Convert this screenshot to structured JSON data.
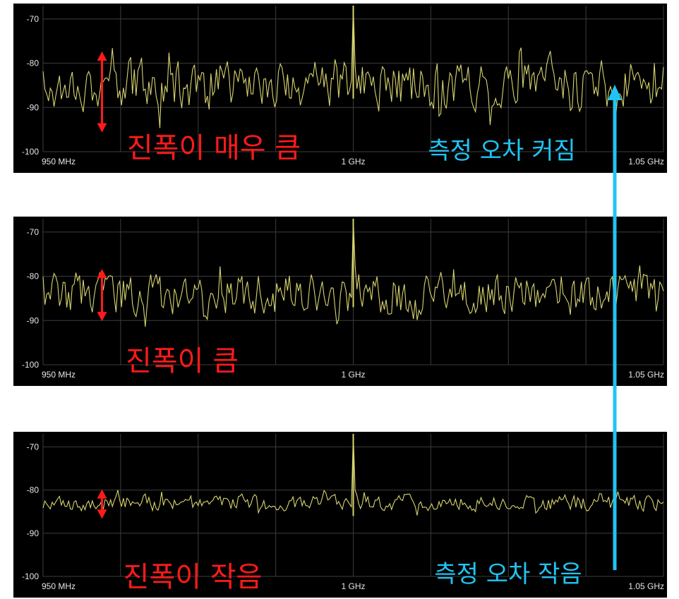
{
  "chart_data": [
    {
      "type": "line",
      "x_unit": "MHz",
      "xlim": [
        950,
        1050
      ],
      "ylim": [
        -100,
        -67
      ],
      "x_ticks": [
        950,
        1000,
        1050
      ],
      "x_tick_labels": [
        "950 MHz",
        "1 GHz",
        "1.05 GHz"
      ],
      "y_ticks": [
        -70,
        -80,
        -90,
        -100
      ],
      "y_tick_labels": [
        "-70",
        "-80",
        "-90",
        "-100"
      ],
      "grid": true,
      "line_color": "#d8d470",
      "signal": {
        "x": 1000,
        "y": -67
      },
      "noise": {
        "mean": -85,
        "swing": [
          -94,
          -77
        ]
      },
      "spread_marker": {
        "x": 959.5,
        "range": [
          -95,
          -78
        ]
      },
      "annotation": "진폭이 매우 큼",
      "side_annotation": "측정 오차 커짐"
    },
    {
      "type": "line",
      "x_unit": "MHz",
      "xlim": [
        950,
        1050
      ],
      "ylim": [
        -100,
        -67
      ],
      "x_ticks": [
        950,
        1000,
        1050
      ],
      "x_tick_labels": [
        "950 MHz",
        "1 GHz",
        "1.05 GHz"
      ],
      "y_ticks": [
        -70,
        -80,
        -90,
        -100
      ],
      "y_tick_labels": [
        "-70",
        "-80",
        "-90",
        "-100"
      ],
      "grid": true,
      "line_color": "#d8d470",
      "signal": {
        "x": 1000,
        "y": -67
      },
      "noise": {
        "mean": -84,
        "swing": [
          -92,
          -78
        ]
      },
      "spread_marker": {
        "x": 959.5,
        "range": [
          -89.5,
          -79
        ]
      },
      "annotation": "진폭이 큼"
    },
    {
      "type": "line",
      "x_unit": "MHz",
      "xlim": [
        950,
        1050
      ],
      "ylim": [
        -100,
        -67
      ],
      "x_ticks": [
        950,
        1000,
        1050
      ],
      "x_tick_labels": [
        "950 MHz",
        "1 GHz",
        "1.05 GHz"
      ],
      "y_ticks": [
        -70,
        -80,
        -90,
        -100
      ],
      "y_tick_labels": [
        "-70",
        "-80",
        "-90",
        "-100"
      ],
      "grid": true,
      "line_color": "#d8d470",
      "signal": {
        "x": 1000,
        "y": -67
      },
      "noise": {
        "mean": -83,
        "swing": [
          -86,
          -80.5
        ]
      },
      "spread_marker": {
        "x": 959.5,
        "range": [
          -86,
          -80.5
        ]
      },
      "annotation": "진폭이 작음",
      "side_annotation": "측정 오차 작음"
    }
  ],
  "colors": {
    "trace": "#d8d470",
    "background": "#000000",
    "grid": "#3c3c3c",
    "red_note": "#ff1a1a",
    "blue_note": "#20c4f4"
  }
}
